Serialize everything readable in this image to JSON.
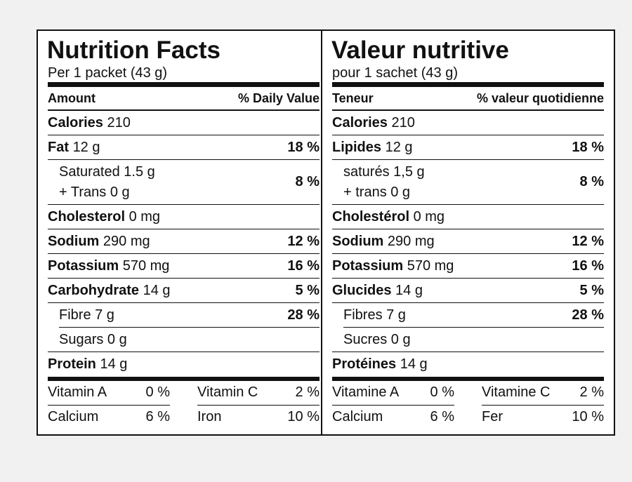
{
  "labels": [
    {
      "title": "Nutrition Facts",
      "serving": "Per 1 packet (43 g)",
      "header": {
        "amount": "Amount",
        "daily_value": "% Daily Value"
      },
      "rows": [
        {
          "name": "Calories",
          "amount": "210"
        },
        {
          "name": "Fat",
          "amount": "12 g",
          "dv": "18 %",
          "subrows": [
            {
              "name": "Saturated 1.5 g",
              "line2": "+ Trans 0 g",
              "dv": "8 %"
            }
          ]
        },
        {
          "name": "Cholesterol",
          "amount": "0 mg"
        },
        {
          "name": "Sodium",
          "amount": "290 mg",
          "dv": "12 %"
        },
        {
          "name": "Potassium",
          "amount": "570 mg",
          "dv": "16 %"
        },
        {
          "name": "Carbohydrate",
          "amount": "14 g",
          "dv": "5 %",
          "subrows": [
            {
              "name": "Fibre 7 g",
              "dv": "28 %"
            },
            {
              "name": "Sugars 0 g"
            }
          ]
        },
        {
          "name": "Protein",
          "amount": "14 g"
        }
      ],
      "vitamins": [
        [
          {
            "name": "Vitamin A",
            "value": "0 %"
          },
          {
            "name": "Vitamin C",
            "value": "2 %"
          }
        ],
        [
          {
            "name": "Calcium",
            "value": "6 %"
          },
          {
            "name": "Iron",
            "value": "10 %"
          }
        ]
      ]
    },
    {
      "title": "Valeur nutritive",
      "serving": "pour 1 sachet (43 g)",
      "header": {
        "amount": "Teneur",
        "daily_value": "% valeur quotidienne"
      },
      "rows": [
        {
          "name": "Calories",
          "amount": "210"
        },
        {
          "name": "Lipides",
          "amount": "12 g",
          "dv": "18 %",
          "subrows": [
            {
              "name": "saturés 1,5 g",
              "line2": "+ trans 0 g",
              "dv": "8 %"
            }
          ]
        },
        {
          "name": "Cholestérol",
          "amount": "0 mg"
        },
        {
          "name": "Sodium",
          "amount": "290 mg",
          "dv": "12 %"
        },
        {
          "name": "Potassium",
          "amount": "570 mg",
          "dv": "16 %"
        },
        {
          "name": "Glucides",
          "amount": "14 g",
          "dv": "5 %",
          "subrows": [
            {
              "name": "Fibres 7 g",
              "dv": "28 %"
            },
            {
              "name": "Sucres 0 g"
            }
          ]
        },
        {
          "name": "Protéines",
          "amount": "14 g"
        }
      ],
      "vitamins": [
        [
          {
            "name": "Vitamine A",
            "value": "0 %"
          },
          {
            "name": "Vitamine C",
            "value": "2 %"
          }
        ],
        [
          {
            "name": "Calcium",
            "value": "6 %"
          },
          {
            "name": "Fer",
            "value": "10 %"
          }
        ]
      ]
    }
  ]
}
